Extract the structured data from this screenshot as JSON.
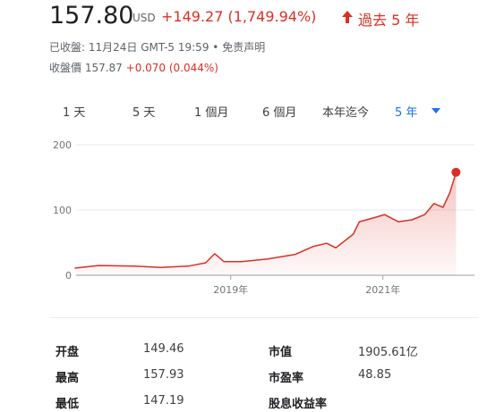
{
  "header": {
    "price": "157.80",
    "currency": "USD",
    "change": "+149.27 (1,749.94%)",
    "period": "過去 5 年",
    "closed": "已收盤: 11月24日 GMT-5 19:59",
    "separator": "•",
    "disclaimer": "免责声明",
    "after_label": "收盤價 157.87",
    "after_change": "+0.070 (0.044%)"
  },
  "tabs": [
    "1 天",
    "5 天",
    "1 個月",
    "6 個月",
    "本年迄今",
    "5 年"
  ],
  "chart_data": {
    "type": "line",
    "color": "#d93025",
    "x": [
      2016.95,
      2017.26,
      2017.73,
      2018.08,
      2018.44,
      2018.67,
      2018.79,
      2018.91,
      2019.14,
      2019.49,
      2019.85,
      2020.08,
      2020.26,
      2020.38,
      2020.61,
      2020.69,
      2020.91,
      2021.02,
      2021.2,
      2021.38,
      2021.55,
      2021.67,
      2021.79,
      2021.88,
      2021.96
    ],
    "values": [
      11,
      15,
      14,
      12,
      14,
      19,
      33,
      21,
      21,
      25,
      32,
      44,
      49,
      42,
      63,
      82,
      89,
      93,
      82,
      85,
      93,
      110,
      104,
      127,
      157.8
    ],
    "xlim": [
      2016.85,
      2022.05
    ],
    "xticks": [
      {
        "value": 2019,
        "label": "2019年"
      },
      {
        "value": 2021,
        "label": "2021年"
      }
    ],
    "ylim": [
      0,
      200
    ],
    "yticks": [
      0,
      100,
      200
    ],
    "grid": true
  },
  "stats": {
    "rows": [
      [
        "开盘",
        "149.46",
        "市值",
        "1905.61亿"
      ],
      [
        "最高",
        "157.93",
        "市盈率",
        "48.85"
      ],
      [
        "最低",
        "147.19",
        "股息收益率"
      ]
    ]
  }
}
